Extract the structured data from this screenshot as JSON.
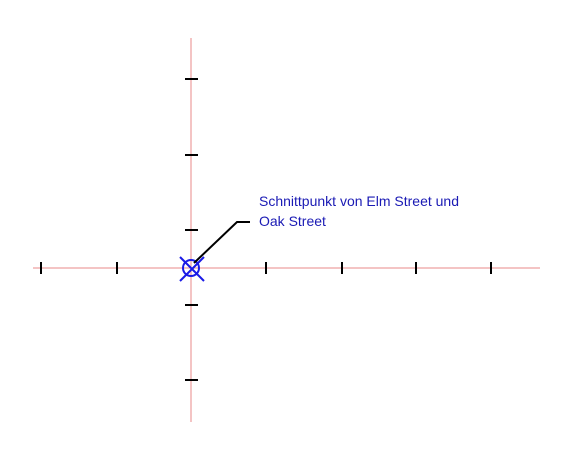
{
  "annotation": {
    "line1": "Schnittpunkt von Elm Street und",
    "line2": "Oak Street"
  },
  "colors": {
    "axis": "#e88a8a",
    "tick": "#000000",
    "marker": "#1a1ae6",
    "label": "#1a1ab4",
    "leader": "#000000"
  },
  "icons": {
    "intersection": "circle-with-x-marker"
  }
}
